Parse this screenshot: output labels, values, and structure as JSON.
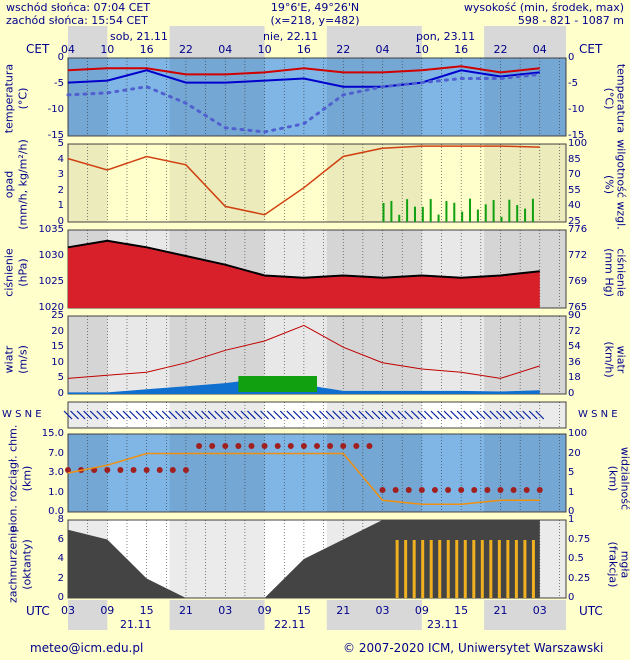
{
  "header": {
    "sunrise": "wschód słońca: 07:04 CET",
    "sunset": "zachód słońca: 15:54 CET",
    "coords": "19°6'E, 49°26'N",
    "grid": "(x=218, y=482)",
    "alt_label": "wysokość (min, środek, max)",
    "alt_values": "598 - 821 - 1087 m"
  },
  "time_axis": {
    "cet_label": "CET",
    "utc_label": "UTC",
    "top_days": [
      "sob, 21.11",
      "nie, 22.11",
      "pon, 23.11"
    ],
    "top_hours": [
      "04",
      "10",
      "16",
      "22",
      "04",
      "10",
      "16",
      "22",
      "04",
      "10",
      "16",
      "22",
      "04"
    ],
    "bottom_hours": [
      "03",
      "09",
      "15",
      "21",
      "03",
      "09",
      "15",
      "21",
      "03",
      "09",
      "15",
      "21",
      "03"
    ],
    "bottom_days": [
      "21.11",
      "22.11",
      "23.11"
    ]
  },
  "panels": {
    "temp": {
      "left_label": "temperatura",
      "left_unit": "(°C)",
      "ticks": [
        "0",
        "-5",
        "-10",
        "-15"
      ]
    },
    "precip": {
      "left_label": "opad",
      "left_unit": "(mm/h, kg/m²/h)",
      "ticks": [
        "5",
        "4",
        "3",
        "2",
        "1",
        "0"
      ],
      "right_label": "wilgotność wzgl.",
      "right_unit": "(%)",
      "rticks": [
        "100",
        "85",
        "70",
        "55",
        "40",
        "25"
      ]
    },
    "pressure": {
      "left_label": "ciśnienie",
      "left_unit": "(hPa)",
      "ticks": [
        "1035",
        "1030",
        "1025",
        "1020"
      ],
      "right_label": "ciśnienie",
      "right_unit": "(mm Hg)",
      "rticks": [
        "776",
        "772",
        "769",
        "765"
      ]
    },
    "wind": {
      "left_label": "wiatr",
      "left_unit": "(m/s)",
      "ticks": [
        "25",
        "20",
        "15",
        "10",
        "5",
        "0"
      ],
      "right_label": "wiatr",
      "right_unit": "(km/h)",
      "rticks": [
        "90",
        "72",
        "54",
        "36",
        "18",
        "0"
      ]
    },
    "dir": {
      "compass": "W S N E"
    },
    "cloudbase": {
      "left_label": "pion. rozciągł. chm.",
      "left_unit": "(km)",
      "ticks": [
        "15.0",
        "7.0",
        "3.0",
        "1.0",
        "0.0"
      ],
      "right_label": "widzialność",
      "right_unit": "(km)",
      "rticks": [
        "100",
        "20",
        "5",
        "1",
        "0"
      ]
    },
    "cloud": {
      "left_label": "zachmurzenie",
      "left_unit": "(oktanty)",
      "ticks": [
        "8",
        "6",
        "4",
        "2",
        "0"
      ],
      "right_label": "mgła",
      "right_unit": "(frakcja)",
      "rticks": [
        "1",
        "0.75",
        "0.5",
        "0.25",
        "0"
      ]
    }
  },
  "footer": {
    "email": "meteo@icm.edu.pl",
    "copyright": "© 2007-2020 ICM, Uniwersytet Warszawski"
  },
  "chart_data": {
    "type": "line",
    "x_hours_utc": [
      0,
      6,
      12,
      18,
      24,
      30,
      36,
      42,
      48,
      54,
      60,
      66,
      72
    ],
    "series": [
      {
        "values": [
          -1,
          -0.5,
          -0.5,
          -2,
          -2,
          -1.5,
          -0.5,
          -1.5,
          -1.5,
          -1,
          0,
          -1.5,
          -0.5
        ]
      },
      {
        "values": [
          -4,
          -3.5,
          -1,
          -4,
          -4,
          -3.5,
          -3,
          -5,
          -5,
          -4,
          -1,
          -2.5,
          -1.5
        ]
      },
      {
        "values": [
          -7,
          -6.5,
          -5,
          -9,
          -15,
          -16,
          -14,
          -7,
          -5,
          -4,
          -3,
          -3,
          -2
        ]
      },
      {
        "values": [
          86,
          75,
          88,
          80,
          40,
          32,
          58,
          88,
          96,
          98,
          98,
          98,
          97
        ]
      },
      {
        "values": [
          1034,
          1035.5,
          1034,
          1032,
          1030,
          1027.5,
          1027,
          1027.5,
          1027,
          1027.5,
          1027,
          1027.5,
          1028.5
        ]
      },
      {
        "values": [
          5,
          6,
          7,
          10,
          14,
          17,
          22,
          15,
          10,
          8,
          7,
          5,
          9
        ]
      },
      {
        "values": [
          0.5,
          0.5,
          1.5,
          2.5,
          3.5,
          5,
          3,
          1,
          1,
          1,
          1,
          0.8,
          1.2
        ]
      }
    ]
  }
}
